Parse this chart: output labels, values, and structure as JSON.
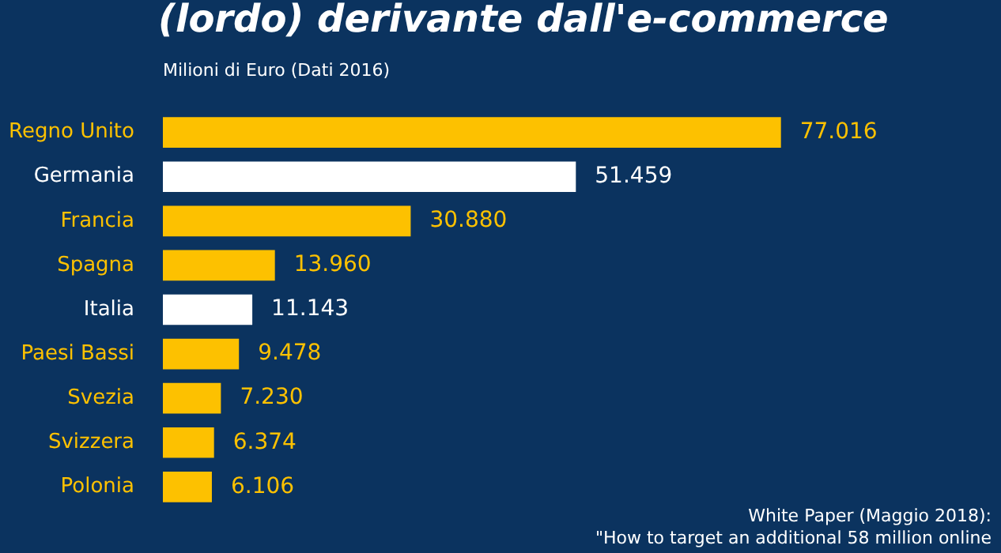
{
  "chart_data": {
    "type": "bar",
    "orientation": "horizontal",
    "title": "(lordo) derivante dall'e-commerce",
    "subtitle": "Milioni di Euro (Dati 2016)",
    "categories": [
      "Regno Unito",
      "Germania",
      "Francia",
      "Spagna",
      "Italia",
      "Paesi Bassi",
      "Svezia",
      "Svizzera",
      "Polonia"
    ],
    "values": [
      77016,
      51459,
      30880,
      13960,
      11143,
      9478,
      7230,
      6374,
      6106
    ],
    "value_labels": [
      "77.016",
      "51.459",
      "30.880",
      "13.960",
      "11.143",
      "9.478",
      "7.230",
      "6.374",
      "6.106"
    ],
    "colors": [
      "#fdc100",
      "#ffffff",
      "#fdc100",
      "#fdc100",
      "#ffffff",
      "#fdc100",
      "#fdc100",
      "#fdc100",
      "#fdc100"
    ],
    "legend": false,
    "tick_labels": "y",
    "annotations": [
      "White Paper (Maggio 2018):",
      "\"How to target an additional 58 million online"
    ]
  }
}
